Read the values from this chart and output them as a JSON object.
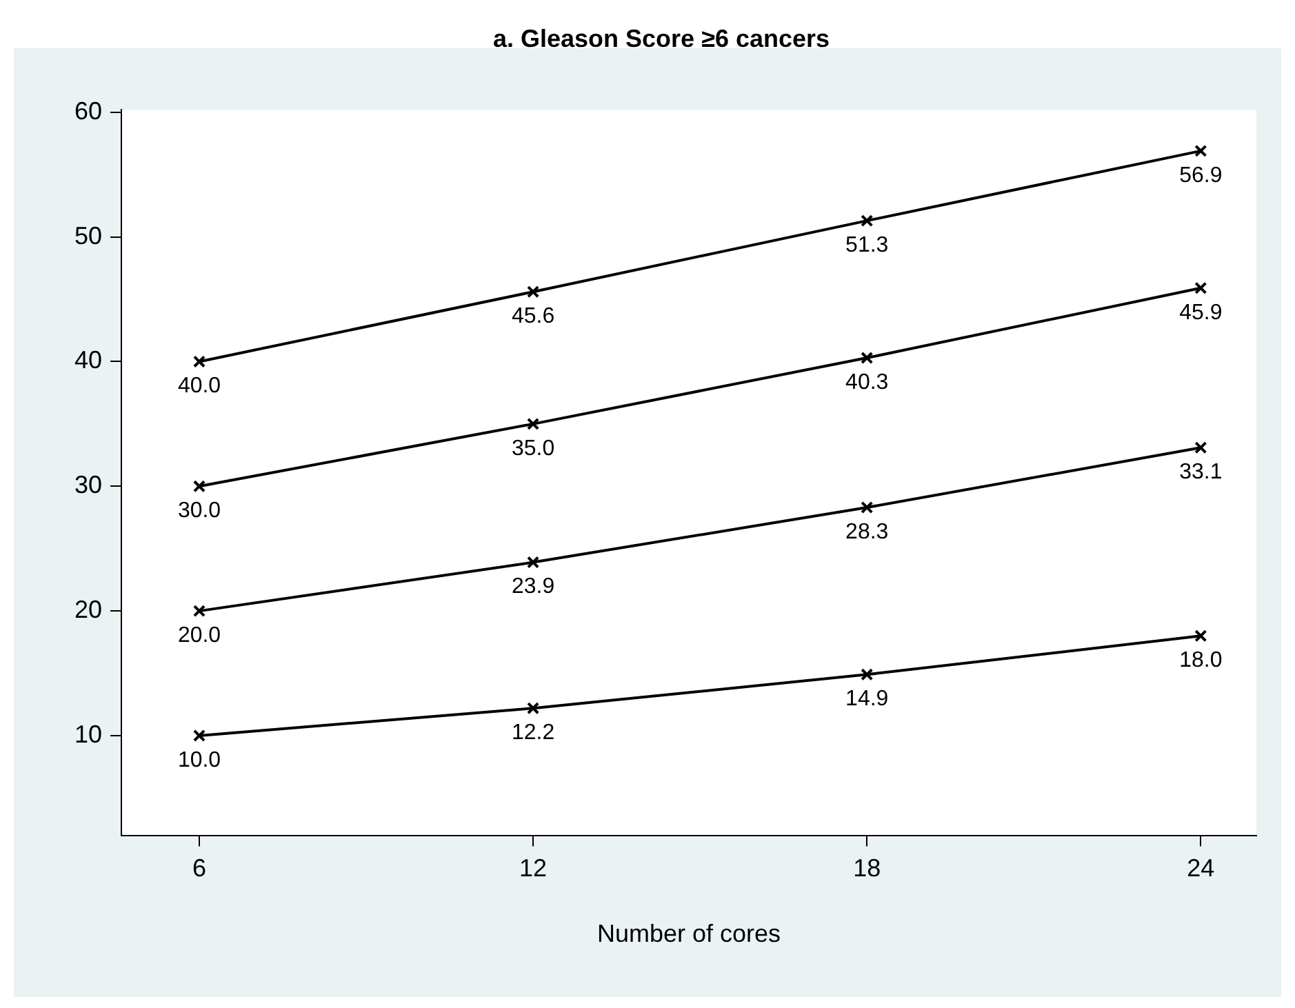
{
  "chart_data": {
    "type": "line",
    "title": "a. Gleason Score ≥6 cancers",
    "xlabel": "Number of cores",
    "x": [
      6,
      12,
      18,
      24
    ],
    "series": [
      {
        "color": "#000000",
        "values": [
          40.0,
          45.6,
          51.3,
          56.9
        ],
        "value_labels": [
          "40.0",
          "45.6",
          "51.3",
          "56.9"
        ]
      },
      {
        "color": "#000000",
        "values": [
          30.0,
          35.0,
          40.3,
          45.9
        ],
        "value_labels": [
          "30.0",
          "35.0",
          "40.3",
          "45.9"
        ]
      },
      {
        "color": "#000000",
        "values": [
          20.0,
          23.9,
          28.3,
          33.1
        ],
        "value_labels": [
          "20.0",
          "23.9",
          "28.3",
          "33.1"
        ]
      },
      {
        "color": "#000000",
        "values": [
          10.0,
          12.2,
          14.9,
          18.0
        ],
        "value_labels": [
          "10.0",
          "12.2",
          "14.9",
          "18.0"
        ]
      }
    ],
    "xlim": [
      4.6,
      25
    ],
    "xticks": [
      6,
      12,
      18,
      24
    ],
    "ylim": [
      2,
      60.2
    ],
    "yticks": [
      10,
      20,
      30,
      40,
      50,
      60
    ],
    "marker": "cross",
    "line_style": "solid",
    "grid": false,
    "legend": false
  }
}
